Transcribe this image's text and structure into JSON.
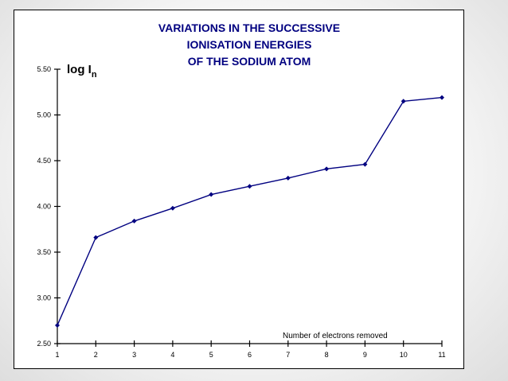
{
  "chart_data": {
    "type": "line",
    "title_lines": [
      "VARIATIONS IN THE SUCCESSIVE",
      "IONISATION ENERGIES",
      "OF THE SODIUM ATOM"
    ],
    "ylabel": {
      "main": "log I",
      "subscript": "n"
    },
    "xlabel": "Number of electrons removed",
    "x": [
      1,
      2,
      3,
      4,
      5,
      6,
      7,
      8,
      9,
      10,
      11
    ],
    "y": [
      2.7,
      3.66,
      3.84,
      3.98,
      4.13,
      4.22,
      4.31,
      4.41,
      4.46,
      5.15,
      5.19
    ],
    "ylim": [
      2.5,
      5.5
    ],
    "yticks": [
      "2.50",
      "3.00",
      "3.50",
      "4.00",
      "4.50",
      "5.00",
      "5.50"
    ],
    "xticks": [
      "1",
      "2",
      "3",
      "4",
      "5",
      "6",
      "7",
      "8",
      "9",
      "10",
      "11"
    ],
    "grid": false,
    "series_color": "#000080",
    "title_color": "#000080"
  }
}
